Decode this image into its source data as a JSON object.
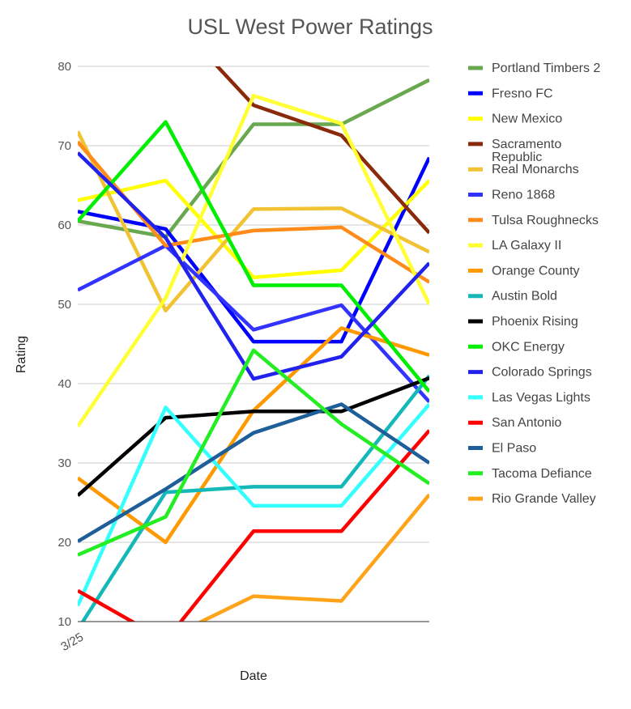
{
  "chart_data": {
    "type": "line",
    "title": "USL West Power Ratings",
    "xlabel": "Date",
    "ylabel": "Rating",
    "ylim": [
      10,
      80
    ],
    "yticks": [
      10,
      20,
      30,
      40,
      50,
      60,
      70,
      80
    ],
    "x_tick_labels": [
      "3/25"
    ],
    "categories": [
      "3/25",
      "",
      "",
      "",
      ""
    ],
    "grid": true,
    "legend_position": "right",
    "series": [
      {
        "name": "Portland Timbers 2",
        "color": "#6aa84f",
        "values": [
          60.5,
          58.5,
          72.7,
          72.7,
          78.3
        ]
      },
      {
        "name": "Fresno FC",
        "color": "#0000ff",
        "values": [
          61.7,
          59.5,
          45.3,
          45.3,
          68.5
        ]
      },
      {
        "name": "New Mexico",
        "color": "#ffff00",
        "values": [
          63.1,
          65.6,
          53.4,
          54.3,
          65.6
        ]
      },
      {
        "name": "Sacramento Republic",
        "color": "#8b2a0a",
        "values": [
          null,
          87.0,
          75.1,
          71.3,
          59.0
        ]
      },
      {
        "name": "Real Monarchs",
        "color": "#f1c232",
        "values": [
          71.8,
          49.2,
          62.0,
          62.1,
          56.6
        ]
      },
      {
        "name": "Reno 1868",
        "color": "#3333ff",
        "values": [
          51.8,
          57.4,
          46.8,
          49.9,
          37.7
        ]
      },
      {
        "name": "Tulsa Roughnecks",
        "color": "#ff8c1a",
        "values": [
          70.5,
          57.4,
          59.3,
          59.7,
          52.8
        ]
      },
      {
        "name": "LA Galaxy II",
        "color": "#ffff33",
        "values": [
          34.6,
          50.8,
          76.3,
          72.8,
          50.0
        ]
      },
      {
        "name": "Orange County",
        "color": "#ff9900",
        "values": [
          28.1,
          20.0,
          36.6,
          47.0,
          43.6
        ]
      },
      {
        "name": "Austin Bold",
        "color": "#14b8b8",
        "values": [
          9.0,
          26.3,
          27.0,
          27.0,
          41.0
        ]
      },
      {
        "name": "Phoenix Rising",
        "color": "#000000",
        "values": [
          25.9,
          35.7,
          36.5,
          36.5,
          40.7
        ]
      },
      {
        "name": "OKC Energy",
        "color": "#00ee00",
        "values": [
          60.5,
          73.0,
          52.4,
          52.4,
          39.0
        ]
      },
      {
        "name": "Colorado Springs",
        "color": "#2222ee",
        "values": [
          69.1,
          58.4,
          40.6,
          43.4,
          55.2
        ]
      },
      {
        "name": "Las Vegas Lights",
        "color": "#33ffff",
        "values": [
          12.0,
          37.0,
          24.6,
          24.6,
          37.4
        ]
      },
      {
        "name": "San Antonio",
        "color": "#ff0000",
        "values": [
          13.9,
          7.6,
          21.4,
          21.4,
          34.1
        ]
      },
      {
        "name": "El Paso",
        "color": "#1f5f99",
        "values": [
          20.1,
          26.7,
          33.8,
          37.4,
          30.0
        ]
      },
      {
        "name": "Tacoma Defiance",
        "color": "#22ee22",
        "values": [
          18.4,
          23.2,
          44.2,
          34.9,
          27.4
        ]
      },
      {
        "name": "Rio Grande Valley",
        "color": "#ffa31a",
        "values": [
          7.5,
          7.8,
          13.2,
          12.6,
          26.0
        ]
      }
    ]
  }
}
